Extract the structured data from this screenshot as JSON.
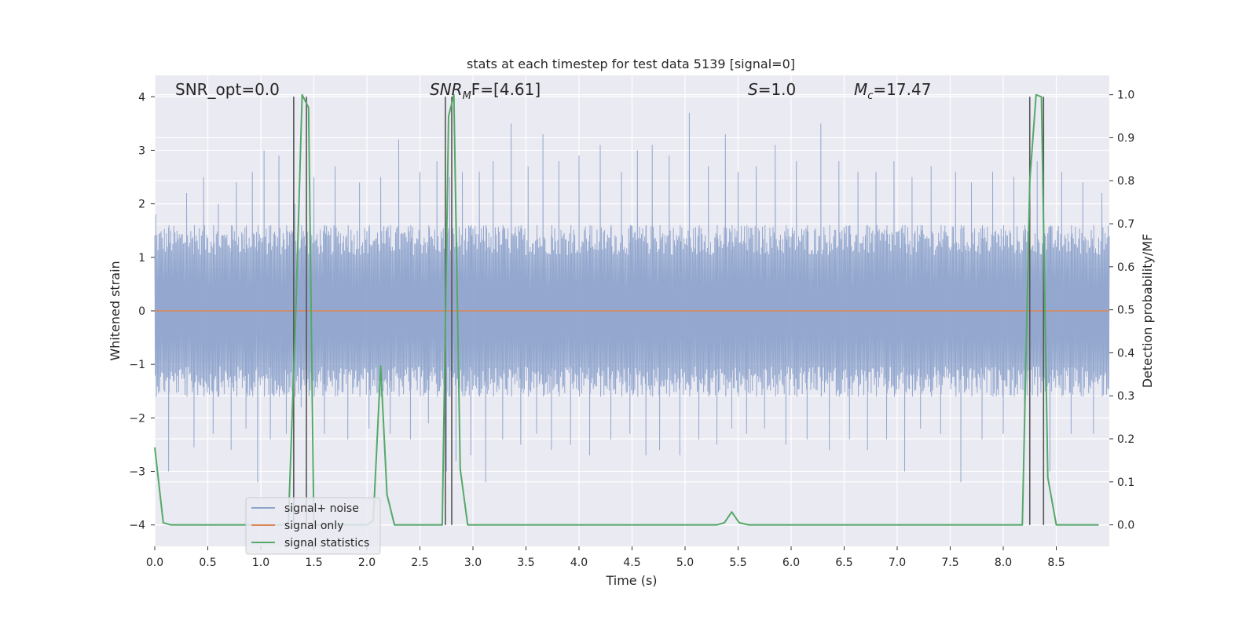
{
  "chart_data": {
    "type": "line",
    "title": "stats at each timestep for test data 5139 [signal=0]",
    "xlabel": "Time (s)",
    "ylabel": "Whitened strain",
    "ylabel_right": "Detection probability/MF",
    "xlim": [
      0,
      9
    ],
    "ylim": [
      -4.4,
      4.4
    ],
    "ylim_right": [
      -0.05,
      1.045
    ],
    "xticks": [
      0.0,
      0.5,
      1.0,
      1.5,
      2.0,
      2.5,
      3.0,
      3.5,
      4.0,
      4.5,
      5.0,
      5.5,
      6.0,
      6.5,
      7.0,
      7.5,
      8.0,
      8.5
    ],
    "xtick_labels": [
      "0.0",
      "0.5",
      "1.0",
      "1.5",
      "2.0",
      "2.5",
      "3.0",
      "3.5",
      "4.0",
      "4.5",
      "5.0",
      "5.5",
      "6.0",
      "6.5",
      "7.0",
      "7.5",
      "8.0",
      "8.5"
    ],
    "yticks": [
      -4,
      -3,
      -2,
      -1,
      0,
      1,
      2,
      3,
      4
    ],
    "ytick_labels": [
      "−4",
      "−3",
      "−2",
      "−1",
      "0",
      "1",
      "2",
      "3",
      "4"
    ],
    "yticks_right": [
      0.0,
      0.1,
      0.2,
      0.3,
      0.4,
      0.5,
      0.6,
      0.7,
      0.8,
      0.9,
      1.0
    ],
    "ytick_labels_right": [
      "0.0",
      "0.1",
      "0.2",
      "0.3",
      "0.4",
      "0.5",
      "0.6",
      "0.7",
      "0.8",
      "0.9",
      "1.0"
    ],
    "grid": true,
    "legend_position": "lower-left",
    "annotations": {
      "snr_opt": "SNR_opt=0.0",
      "snr_mf_italic": "SNR",
      "snr_mf_sub": "M",
      "snr_mf_tail": "F=[4.61]",
      "s_italic": "S",
      "s_tail": "=1.0",
      "mc_italic": "M",
      "mc_sub": "c",
      "mc_tail": "=17.47"
    },
    "series": [
      {
        "name": "signal+ noise",
        "color": "#8fa4cc",
        "kind": "strain",
        "base_envelope": 1.6,
        "spikes": [
          [
            0.01,
            1.8
          ],
          [
            0.13,
            -3.0
          ],
          [
            0.3,
            2.2
          ],
          [
            0.37,
            -2.55
          ],
          [
            0.46,
            2.5
          ],
          [
            0.55,
            -2.3
          ],
          [
            0.6,
            2.0
          ],
          [
            0.72,
            -2.6
          ],
          [
            0.77,
            2.4
          ],
          [
            0.86,
            -2.2
          ],
          [
            0.92,
            2.6
          ],
          [
            0.97,
            -3.2
          ],
          [
            1.03,
            3.0
          ],
          [
            1.09,
            -2.4
          ],
          [
            1.17,
            2.9
          ],
          [
            1.24,
            -2.3
          ],
          [
            1.32,
            2.0
          ],
          [
            1.38,
            -1.8
          ],
          [
            1.5,
            2.5
          ],
          [
            1.6,
            -2.3
          ],
          [
            1.7,
            2.7
          ],
          [
            1.82,
            -2.4
          ],
          [
            1.93,
            2.4
          ],
          [
            2.02,
            -2.2
          ],
          [
            2.13,
            2.5
          ],
          [
            2.22,
            -2.3
          ],
          [
            2.3,
            3.2
          ],
          [
            2.41,
            -2.4
          ],
          [
            2.5,
            2.6
          ],
          [
            2.58,
            -2.1
          ],
          [
            2.66,
            2.8
          ],
          [
            2.75,
            -3.0
          ],
          [
            2.78,
            2.5
          ],
          [
            2.84,
            -2.8
          ],
          [
            2.9,
            2.6
          ],
          [
            2.98,
            -2.7
          ],
          [
            3.06,
            2.6
          ],
          [
            3.12,
            -3.2
          ],
          [
            3.19,
            2.8
          ],
          [
            3.28,
            -2.4
          ],
          [
            3.36,
            3.5
          ],
          [
            3.45,
            -2.5
          ],
          [
            3.52,
            2.7
          ],
          [
            3.6,
            -2.3
          ],
          [
            3.66,
            3.3
          ],
          [
            3.74,
            -2.6
          ],
          [
            3.81,
            2.8
          ],
          [
            3.92,
            -2.5
          ],
          [
            4.0,
            2.9
          ],
          [
            4.1,
            -2.7
          ],
          [
            4.2,
            3.1
          ],
          [
            4.3,
            -2.4
          ],
          [
            4.4,
            2.6
          ],
          [
            4.48,
            -2.3
          ],
          [
            4.55,
            3.0
          ],
          [
            4.63,
            -2.7
          ],
          [
            4.69,
            3.1
          ],
          [
            4.76,
            -2.6
          ],
          [
            4.85,
            2.9
          ],
          [
            4.95,
            -2.7
          ],
          [
            5.04,
            3.7
          ],
          [
            5.13,
            -2.4
          ],
          [
            5.22,
            2.7
          ],
          [
            5.3,
            -2.5
          ],
          [
            5.38,
            3.3
          ],
          [
            5.44,
            -2.2
          ],
          [
            5.5,
            2.6
          ],
          [
            5.58,
            -2.3
          ],
          [
            5.67,
            2.7
          ],
          [
            5.75,
            -2.2
          ],
          [
            5.85,
            3.1
          ],
          [
            5.95,
            -2.5
          ],
          [
            6.05,
            2.8
          ],
          [
            6.15,
            -2.4
          ],
          [
            6.28,
            3.5
          ],
          [
            6.36,
            -2.6
          ],
          [
            6.45,
            2.8
          ],
          [
            6.55,
            -2.4
          ],
          [
            6.63,
            2.6
          ],
          [
            6.72,
            -2.6
          ],
          [
            6.8,
            2.6
          ],
          [
            6.9,
            -2.4
          ],
          [
            6.97,
            2.8
          ],
          [
            7.07,
            -3.0
          ],
          [
            7.14,
            2.5
          ],
          [
            7.22,
            -2.2
          ],
          [
            7.32,
            2.7
          ],
          [
            7.41,
            -2.3
          ],
          [
            7.55,
            2.6
          ],
          [
            7.6,
            -3.2
          ],
          [
            7.7,
            2.4
          ],
          [
            7.8,
            -2.4
          ],
          [
            7.9,
            2.6
          ],
          [
            8.0,
            -2.3
          ],
          [
            8.1,
            2.5
          ],
          [
            8.2,
            -2.2
          ],
          [
            8.32,
            2.8
          ],
          [
            8.44,
            -3.0
          ],
          [
            8.55,
            2.6
          ],
          [
            8.64,
            -2.3
          ],
          [
            8.75,
            2.4
          ],
          [
            8.85,
            -2.3
          ],
          [
            8.93,
            2.2
          ]
        ]
      },
      {
        "name": "signal only",
        "color": "#dd8452",
        "kind": "flat",
        "value": 0
      },
      {
        "name": "signal statistics",
        "color": "#55a868",
        "kind": "probability",
        "x": [
          0.0,
          0.08,
          0.15,
          1.2,
          1.26,
          1.33,
          1.39,
          1.45,
          1.5,
          1.55,
          2.0,
          2.06,
          2.13,
          2.19,
          2.26,
          2.33,
          2.65,
          2.71,
          2.77,
          2.82,
          2.88,
          2.95,
          3.02,
          5.3,
          5.37,
          5.44,
          5.51,
          5.6,
          8.18,
          8.25,
          8.31,
          8.36,
          8.42,
          8.5,
          8.9
        ],
        "y": [
          0.18,
          0.005,
          0.0,
          0.0,
          0.005,
          0.5,
          1.0,
          0.97,
          0.0,
          0.0,
          0.0,
          0.01,
          0.37,
          0.07,
          0.0,
          0.0,
          0.0,
          0.0,
          0.95,
          1.0,
          0.13,
          0.0,
          0.0,
          0.0,
          0.005,
          0.03,
          0.005,
          0.0,
          0.0,
          0.8,
          1.0,
          0.995,
          0.11,
          0.0,
          0.0
        ]
      }
    ],
    "vertical_markers": [
      1.31,
      1.43,
      2.74,
      2.8,
      8.25,
      8.38
    ]
  }
}
